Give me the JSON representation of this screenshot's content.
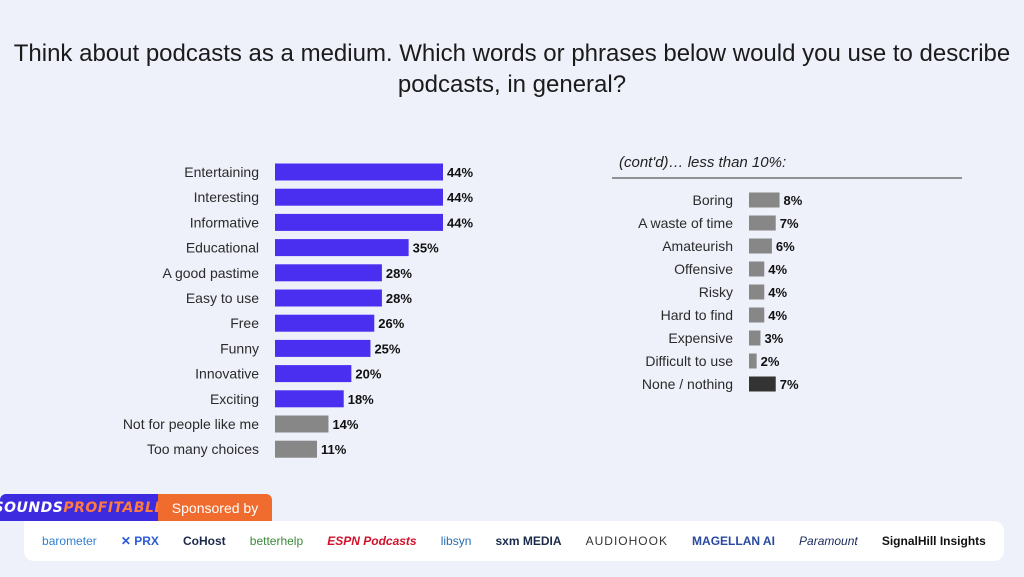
{
  "title": "Think about podcasts as a medium. Which words or phrases below would you use to describe podcasts, in general?",
  "chart_data": [
    {
      "type": "bar",
      "orientation": "horizontal",
      "categories": [
        "Entertaining",
        "Interesting",
        "Informative",
        "Educational",
        "A good pastime",
        "Easy to use",
        "Free",
        "Funny",
        "Innovative",
        "Exciting",
        "Not for people like me",
        "Too many choices"
      ],
      "values": [
        44,
        44,
        44,
        35,
        28,
        28,
        26,
        25,
        20,
        18,
        14,
        11
      ],
      "value_labels": [
        "44%",
        "44%",
        "44%",
        "35%",
        "28%",
        "28%",
        "26%",
        "25%",
        "20%",
        "18%",
        "14%",
        "11%"
      ],
      "colors": [
        "#4b2ff0",
        "#4b2ff0",
        "#4b2ff0",
        "#4b2ff0",
        "#4b2ff0",
        "#4b2ff0",
        "#4b2ff0",
        "#4b2ff0",
        "#4b2ff0",
        "#4b2ff0",
        "#878787",
        "#878787"
      ],
      "xlim": [
        0,
        44
      ],
      "grid": false
    },
    {
      "type": "bar",
      "orientation": "horizontal",
      "title": "(cont'd)… less than 10%:",
      "categories": [
        "Boring",
        "A waste of time",
        "Amateurish",
        "Offensive",
        "Risky",
        "Hard to find",
        "Expensive",
        "Difficult to use",
        "None / nothing"
      ],
      "values": [
        8,
        7,
        6,
        4,
        4,
        4,
        3,
        2,
        7
      ],
      "value_labels": [
        "8%",
        "7%",
        "6%",
        "4%",
        "4%",
        "4%",
        "3%",
        "2%",
        "7%"
      ],
      "colors": [
        "#878787",
        "#878787",
        "#878787",
        "#878787",
        "#878787",
        "#878787",
        "#878787",
        "#878787",
        "#333333"
      ],
      "xlim": [
        0,
        44
      ],
      "grid": false
    }
  ],
  "footer": {
    "brand_part1": "SOUNDS",
    "brand_part2": "PROFITABLE",
    "sponsored_label": "Sponsored by",
    "sponsors": [
      "barometer",
      "✕ PRX",
      "CoHost",
      "betterhelp",
      "ESPN Podcasts",
      "libsyn",
      "sxm MEDIA",
      "AUDIOHOOK",
      "MAGELLAN AI",
      "Paramount",
      "SignalHill Insights"
    ]
  }
}
